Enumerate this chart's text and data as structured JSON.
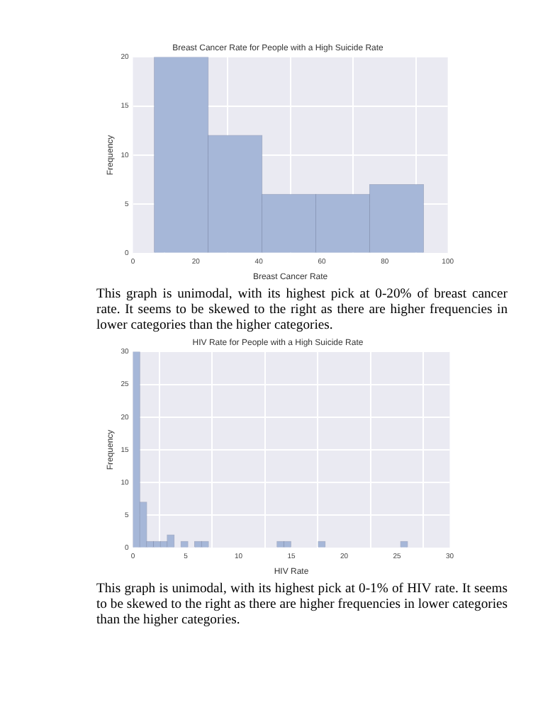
{
  "chart_data": [
    {
      "type": "histogram",
      "title": "Breast Cancer Rate for People with a High Suicide Rate",
      "xlabel": "Breast Cancer Rate",
      "ylabel": "Frequency",
      "bins": [
        6.8,
        23.9,
        41,
        58.1,
        75.2,
        92.3
      ],
      "values": [
        20,
        12,
        6,
        6,
        7
      ],
      "color": "#a6b7d8",
      "xlim": [
        0,
        100
      ],
      "xticks": [
        0,
        20,
        40,
        60,
        80,
        100
      ],
      "ylim": [
        0,
        20
      ],
      "yticks": [
        0,
        5,
        10,
        15,
        20
      ],
      "grid": true,
      "legend": false,
      "annotations": [
        "This graph is unimodal, with its highest pick at 0-20% of breast cancer rate. It seems to be skewed to the right as there are higher frequencies in lower categories than the higher categories."
      ]
    },
    {
      "type": "histogram",
      "title": "HIV Rate for People with a High Suicide Rate",
      "xlabel": "HIV Rate",
      "ylabel": "Frequency",
      "bins": [
        0,
        0.65,
        1.3,
        1.95,
        2.6,
        3.25,
        3.9,
        4.55,
        5.2,
        5.85,
        6.5,
        7.15,
        7.8,
        8.45,
        9.1,
        9.75,
        10.4,
        11.05,
        11.7,
        12.35,
        13,
        13.65,
        14.3,
        14.95,
        15.6,
        16.25,
        16.9,
        17.55,
        18.2,
        18.85,
        19.5,
        20.15,
        20.8,
        21.45,
        22.1,
        22.75,
        23.4,
        24.05,
        24.7,
        25.35,
        26
      ],
      "values": [
        30,
        7,
        1,
        1,
        1,
        2,
        0,
        1,
        0,
        1,
        1,
        0,
        0,
        0,
        0,
        0,
        0,
        0,
        0,
        0,
        0,
        1,
        1,
        0,
        0,
        0,
        0,
        1,
        0,
        0,
        0,
        0,
        0,
        0,
        0,
        0,
        0,
        0,
        0,
        1
      ],
      "color": "#a6b7d8",
      "xlim": [
        0,
        30
      ],
      "xticks": [
        0,
        5,
        10,
        15,
        20,
        25,
        30
      ],
      "ylim": [
        0,
        30
      ],
      "yticks": [
        0,
        5,
        10,
        15,
        20,
        25,
        30
      ],
      "grid": true,
      "legend": false,
      "annotations": [
        "This graph is unimodal, with its highest pick at 0-1% of HIV rate. It seems to be skewed to the right as there are higher frequencies in lower categories than the higher categories."
      ]
    }
  ]
}
